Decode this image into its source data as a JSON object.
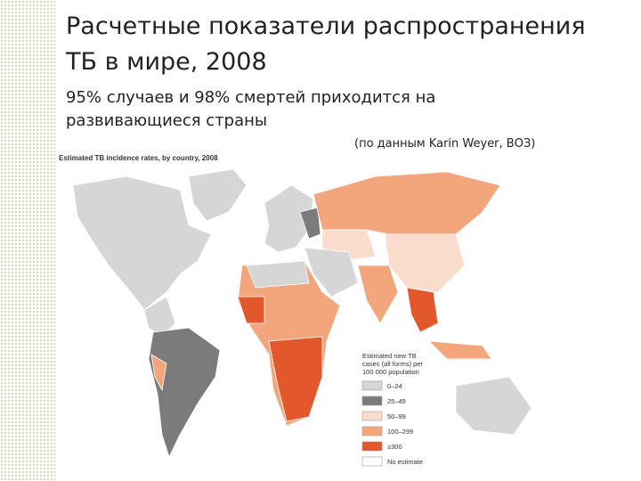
{
  "header": {
    "title": "Расчетные показатели распространения ТБ в мире, 2008",
    "subtitle": "95% случаев и 98% смертей приходится на развивающиеся страны",
    "source": "(по данным Karin Weyer, ВОЗ)"
  },
  "map": {
    "title": "Estimated TB incidence rates, by country, 2008",
    "legend": {
      "title_lines": [
        "Estimated new TB",
        "cases (all forms) per",
        "100 000 population"
      ],
      "items": [
        {
          "label": "0–24",
          "color": "#d6d6d6"
        },
        {
          "label": "25–49",
          "color": "#7b7b7b"
        },
        {
          "label": "50–99",
          "color": "#f9dccb"
        },
        {
          "label": "100–299",
          "color": "#f3a57c"
        },
        {
          "label": "≥300",
          "color": "#e2572b"
        },
        {
          "label": "No estimate",
          "color": "#ffffff"
        }
      ]
    }
  }
}
